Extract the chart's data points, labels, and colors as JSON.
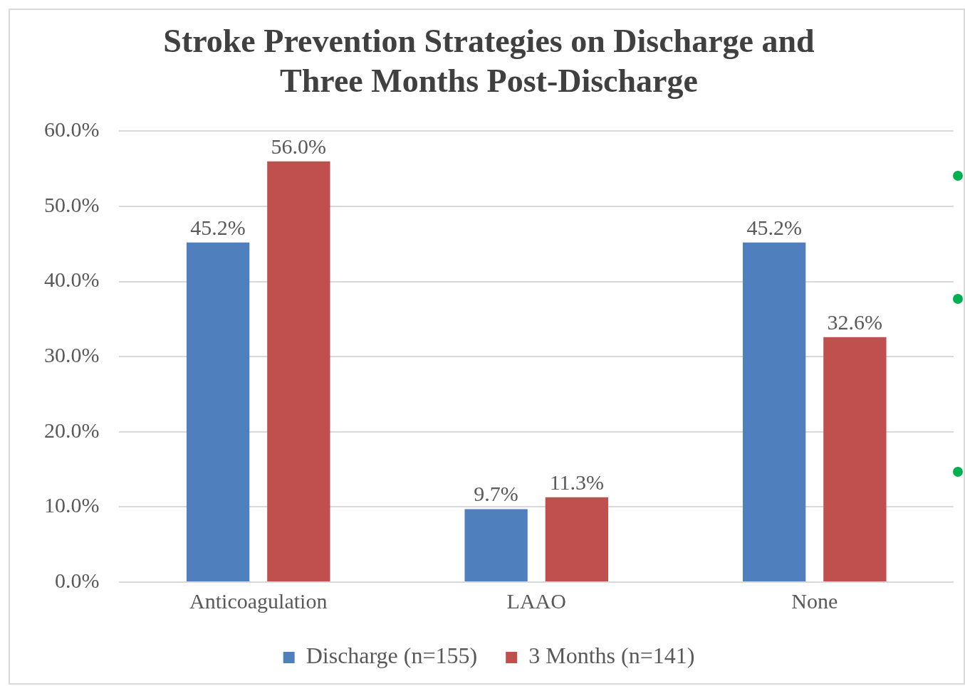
{
  "chart_data": {
    "type": "bar",
    "title": "Stroke Prevention Strategies on Discharge and Three Months Post-Discharge",
    "categories": [
      "Anticoagulation",
      "LAAO",
      "None"
    ],
    "series": [
      {
        "name": "Discharge (n=155)",
        "color": "#4f7fbd",
        "values": [
          45.2,
          9.7,
          45.2
        ],
        "value_labels": [
          "45.2%",
          "9.7%",
          "45.2%"
        ]
      },
      {
        "name": "3 Months (n=141)",
        "color": "#c0504d",
        "values": [
          56.0,
          11.3,
          32.6
        ],
        "value_labels": [
          "56.0%",
          "11.3%",
          "32.6%"
        ]
      }
    ],
    "ylim": [
      0,
      60
    ],
    "yticks": [
      {
        "value": 0,
        "label": "0.0%"
      },
      {
        "value": 10,
        "label": "10.0%"
      },
      {
        "value": 20,
        "label": "20.0%"
      },
      {
        "value": 30,
        "label": "30.0%"
      },
      {
        "value": 40,
        "label": "40.0%"
      },
      {
        "value": 50,
        "label": "50.0%"
      },
      {
        "value": 60,
        "label": "60.0%"
      }
    ],
    "grid": "y",
    "legend": "bottom"
  }
}
